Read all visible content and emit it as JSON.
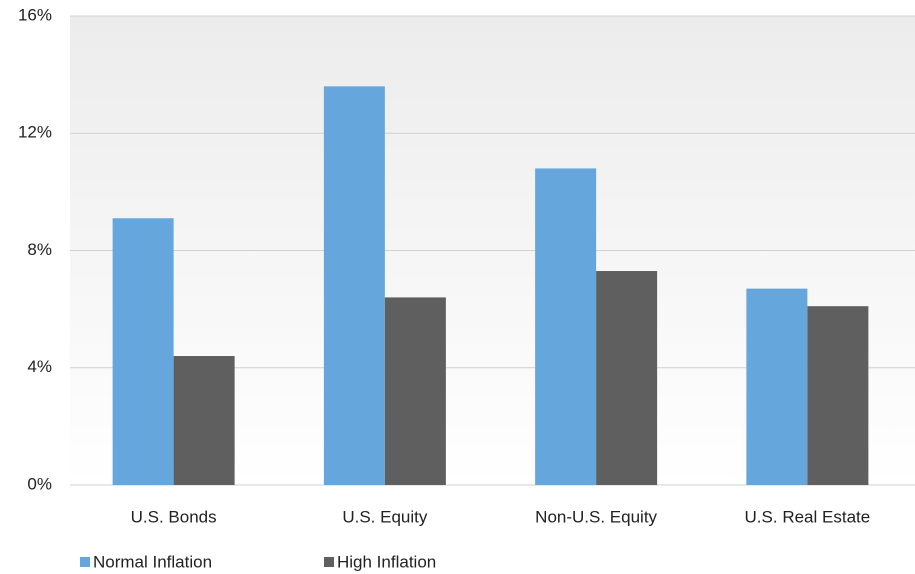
{
  "chart_data": {
    "type": "bar",
    "categories": [
      "U.S. Bonds",
      "U.S. Equity",
      "Non-U.S. Equity",
      "U.S. Real Estate"
    ],
    "series": [
      {
        "name": "Normal Inflation",
        "color": "#65a7dc",
        "values": [
          9.1,
          13.6,
          10.8,
          6.7
        ]
      },
      {
        "name": "High Inflation",
        "color": "#5f5f5f",
        "values": [
          4.4,
          6.4,
          7.3,
          6.1
        ]
      }
    ],
    "ylim": [
      0,
      16
    ],
    "yticks": [
      {
        "value": 0,
        "label": "0%"
      },
      {
        "value": 4,
        "label": "4%"
      },
      {
        "value": 8,
        "label": "8%"
      },
      {
        "value": 12,
        "label": "12%"
      },
      {
        "value": 16,
        "label": "16%"
      }
    ],
    "grid": true,
    "legend": "bottom-left"
  }
}
